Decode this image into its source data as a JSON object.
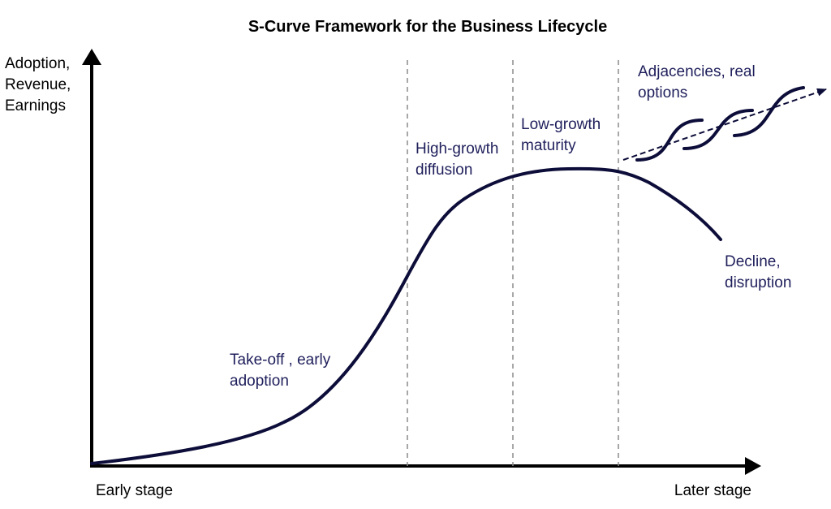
{
  "title": "S-Curve Framework for the Business Lifecycle",
  "y_axis_label": [
    "Adoption,",
    "Revenue,",
    "Earnings"
  ],
  "x_axis_start_label": "Early stage",
  "x_axis_end_label": "Later stage",
  "phases": [
    {
      "id": "takeoff",
      "lines": [
        "Take-off , early",
        "adoption"
      ]
    },
    {
      "id": "high-growth",
      "lines": [
        "High-growth",
        "diffusion"
      ]
    },
    {
      "id": "low-growth",
      "lines": [
        "Low-growth",
        "maturity"
      ]
    },
    {
      "id": "decline",
      "lines": [
        "Decline,",
        "disruption"
      ]
    },
    {
      "id": "adjacencies",
      "lines": [
        "Adjacencies, real",
        "options"
      ]
    }
  ],
  "colors": {
    "curve": "#0d0d3a",
    "label": "#1f1f5c",
    "axis": "#000000",
    "divider": "#8c8c8c"
  }
}
